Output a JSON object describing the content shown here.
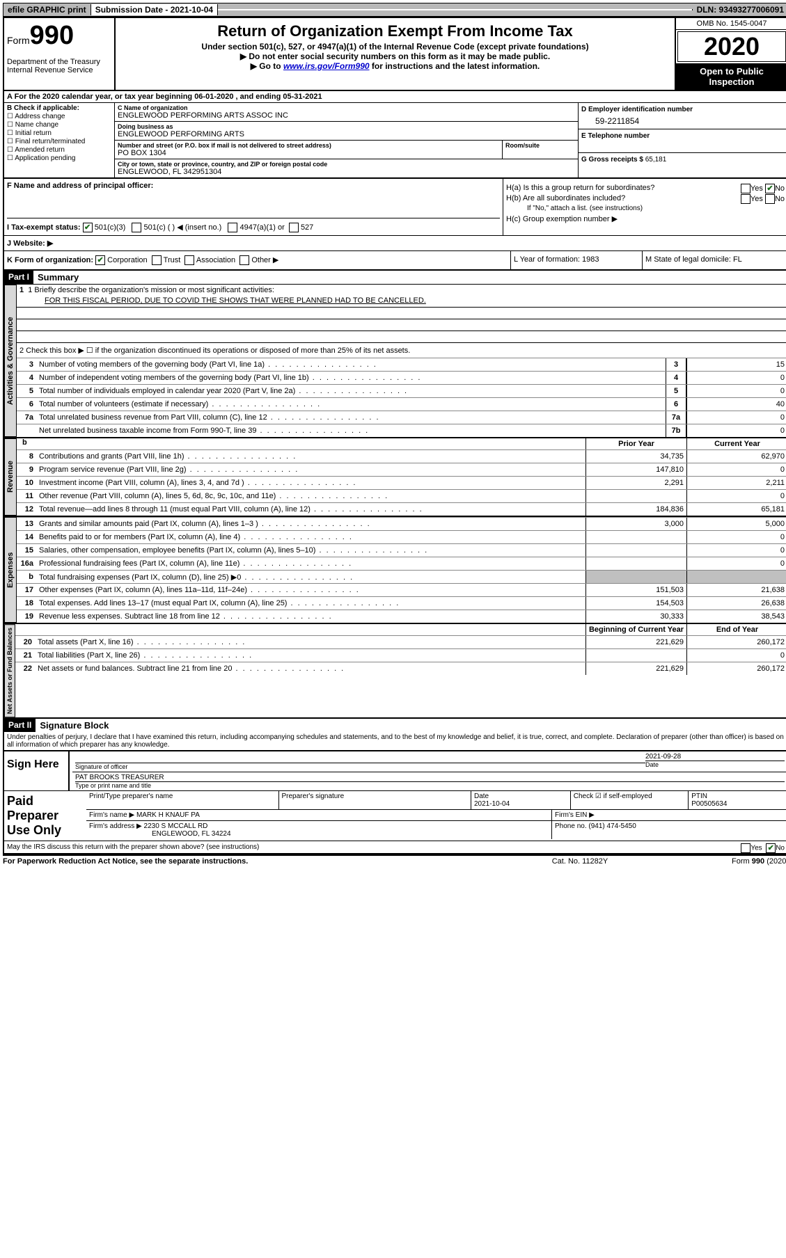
{
  "top": {
    "efile": "efile GRAPHIC print",
    "submission_label": "Submission Date - 2021-10-04",
    "dln": "DLN: 93493277006091"
  },
  "header": {
    "form_word": "Form",
    "form_num": "990",
    "dept": "Department of the Treasury\nInternal Revenue Service",
    "title": "Return of Organization Exempt From Income Tax",
    "sub1": "Under section 501(c), 527, or 4947(a)(1) of the Internal Revenue Code (except private foundations)",
    "sub2": "▶ Do not enter social security numbers on this form as it may be made public.",
    "sub3_pre": "▶ Go to ",
    "sub3_link": "www.irs.gov/Form990",
    "sub3_post": " for instructions and the latest information.",
    "omb": "OMB No. 1545-0047",
    "year": "2020",
    "open": "Open to Public Inspection"
  },
  "row_a": "A For the 2020 calendar year, or tax year beginning 06-01-2020    , and ending 05-31-2021",
  "col_b": {
    "label": "B Check if applicable:",
    "items": [
      "Address change",
      "Name change",
      "Initial return",
      "Final return/terminated",
      "Amended return",
      "Application pending"
    ]
  },
  "col_c": {
    "name_label": "C Name of organization",
    "name": "ENGLEWOOD PERFORMING ARTS ASSOC INC",
    "dba_label": "Doing business as",
    "dba": "ENGLEWOOD PERFORMING ARTS",
    "street_label": "Number and street (or P.O. box if mail is not delivered to street address)",
    "room_label": "Room/suite",
    "street": "PO BOX 1304",
    "city_label": "City or town, state or province, country, and ZIP or foreign postal code",
    "city": "ENGLEWOOD, FL  342951304"
  },
  "col_d": {
    "ein_label": "D Employer identification number",
    "ein": "59-2211854",
    "phone_label": "E Telephone number",
    "phone": "",
    "gross_label": "G Gross receipts $",
    "gross": "65,181"
  },
  "f": {
    "label": "F Name and address of principal officer:",
    "value": ""
  },
  "h": {
    "a": "H(a)  Is this a group return for subordinates?",
    "b": "H(b)  Are all subordinates included?",
    "b_note": "If \"No,\" attach a list. (see instructions)",
    "c": "H(c)  Group exemption number ▶",
    "yes": "Yes",
    "no": "No"
  },
  "i": {
    "label": "I    Tax-exempt status:",
    "opts": [
      "501(c)(3)",
      "501(c) (  ) ◀ (insert no.)",
      "4947(a)(1) or",
      "527"
    ]
  },
  "j": "J    Website: ▶",
  "k": {
    "label": "K Form of organization:",
    "opts": [
      "Corporation",
      "Trust",
      "Association",
      "Other ▶"
    ],
    "l": "L Year of formation: 1983",
    "m": "M State of legal domicile: FL"
  },
  "part1": {
    "header": "Part I",
    "title": "Summary",
    "line1_label": "1  Briefly describe the organization's mission or most significant activities:",
    "mission": "FOR THIS FISCAL PERIOD, DUE TO COVID THE SHOWS THAT WERE PLANNED HAD TO BE CANCELLED.",
    "line2": "2    Check this box ▶ ☐  if the organization discontinued its operations or disposed of more than 25% of its net assets.",
    "tabs": {
      "gov": "Activities & Governance",
      "rev": "Revenue",
      "exp": "Expenses",
      "net": "Net Assets or Fund Balances"
    },
    "cols": {
      "prior": "Prior Year",
      "current": "Current Year",
      "begin": "Beginning of Current Year",
      "end": "End of Year"
    },
    "lines_top": [
      {
        "n": "3",
        "d": "Number of voting members of the governing body (Part VI, line 1a)",
        "box": "3",
        "v": "15"
      },
      {
        "n": "4",
        "d": "Number of independent voting members of the governing body (Part VI, line 1b)",
        "box": "4",
        "v": "0"
      },
      {
        "n": "5",
        "d": "Total number of individuals employed in calendar year 2020 (Part V, line 2a)",
        "box": "5",
        "v": "0"
      },
      {
        "n": "6",
        "d": "Total number of volunteers (estimate if necessary)",
        "box": "6",
        "v": "40"
      },
      {
        "n": "7a",
        "d": "Total unrelated business revenue from Part VIII, column (C), line 12",
        "box": "7a",
        "v": "0"
      },
      {
        "n": "",
        "d": "Net unrelated business taxable income from Form 990-T, line 39",
        "box": "7b",
        "v": "0"
      }
    ],
    "lines_rev": [
      {
        "n": "8",
        "d": "Contributions and grants (Part VIII, line 1h)",
        "p": "34,735",
        "c": "62,970"
      },
      {
        "n": "9",
        "d": "Program service revenue (Part VIII, line 2g)",
        "p": "147,810",
        "c": "0"
      },
      {
        "n": "10",
        "d": "Investment income (Part VIII, column (A), lines 3, 4, and 7d )",
        "p": "2,291",
        "c": "2,211"
      },
      {
        "n": "11",
        "d": "Other revenue (Part VIII, column (A), lines 5, 6d, 8c, 9c, 10c, and 11e)",
        "p": "",
        "c": "0"
      },
      {
        "n": "12",
        "d": "Total revenue—add lines 8 through 11 (must equal Part VIII, column (A), line 12)",
        "p": "184,836",
        "c": "65,181"
      }
    ],
    "lines_exp": [
      {
        "n": "13",
        "d": "Grants and similar amounts paid (Part IX, column (A), lines 1–3 )",
        "p": "3,000",
        "c": "5,000"
      },
      {
        "n": "14",
        "d": "Benefits paid to or for members (Part IX, column (A), line 4)",
        "p": "",
        "c": "0"
      },
      {
        "n": "15",
        "d": "Salaries, other compensation, employee benefits (Part IX, column (A), lines 5–10)",
        "p": "",
        "c": "0"
      },
      {
        "n": "16a",
        "d": "Professional fundraising fees (Part IX, column (A), line 11e)",
        "p": "",
        "c": "0"
      },
      {
        "n": "b",
        "d": "Total fundraising expenses (Part IX, column (D), line 25) ▶0",
        "p": "GRAY",
        "c": "GRAY"
      },
      {
        "n": "17",
        "d": "Other expenses (Part IX, column (A), lines 11a–11d, 11f–24e)",
        "p": "151,503",
        "c": "21,638"
      },
      {
        "n": "18",
        "d": "Total expenses. Add lines 13–17 (must equal Part IX, column (A), line 25)",
        "p": "154,503",
        "c": "26,638"
      },
      {
        "n": "19",
        "d": "Revenue less expenses. Subtract line 18 from line 12",
        "p": "30,333",
        "c": "38,543"
      }
    ],
    "lines_net": [
      {
        "n": "20",
        "d": "Total assets (Part X, line 16)",
        "p": "221,629",
        "c": "260,172"
      },
      {
        "n": "21",
        "d": "Total liabilities (Part X, line 26)",
        "p": "",
        "c": "0"
      },
      {
        "n": "22",
        "d": "Net assets or fund balances. Subtract line 21 from line 20",
        "p": "221,629",
        "c": "260,172"
      }
    ]
  },
  "part2": {
    "header": "Part II",
    "title": "Signature Block",
    "perjury": "Under penalties of perjury, I declare that I have examined this return, including accompanying schedules and statements, and to the best of my knowledge and belief, it is true, correct, and complete. Declaration of preparer (other than officer) is based on all information of which preparer has any knowledge."
  },
  "sign": {
    "here": "Sign Here",
    "sig_officer": "Signature of officer",
    "date": "2021-09-28",
    "date_label": "Date",
    "name": "PAT BROOKS  TREASURER",
    "name_label": "Type or print name and title"
  },
  "paid": {
    "title": "Paid Preparer Use Only",
    "h1": "Print/Type preparer's name",
    "h2": "Preparer's signature",
    "h3": "Date",
    "h3v": "2021-10-04",
    "h4": "Check ☑ if self-employed",
    "h5": "PTIN",
    "h5v": "P00505634",
    "firm_label": "Firm's name    ▶",
    "firm": "MARK H KNAUF PA",
    "ein_label": "Firm's EIN ▶",
    "addr_label": "Firm's address ▶",
    "addr1": "2230 S MCCALL RD",
    "addr2": "ENGLEWOOD, FL  34224",
    "phone_label": "Phone no.",
    "phone": "(941) 474-5450"
  },
  "discuss": "May the IRS discuss this return with the preparer shown above? (see instructions)",
  "footer": {
    "l": "For Paperwork Reduction Act Notice, see the separate instructions.",
    "c": "Cat. No. 11282Y",
    "r": "Form 990 (2020)"
  }
}
